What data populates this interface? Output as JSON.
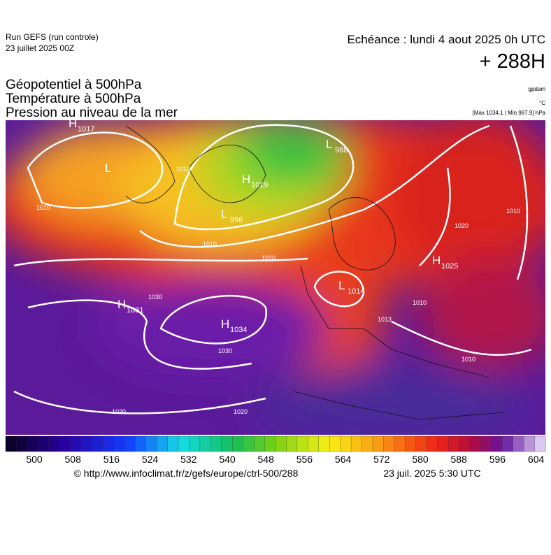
{
  "header": {
    "run": "Run GEFS (run controle)",
    "run_date": "23 juillet 2025 00Z",
    "valid": "Echéance : lundi 4 aout 2025 0h UTC",
    "lead": "+ 288H",
    "fields": [
      "Géopotentiel à 500hPa",
      "Température à 500hPa",
      "Pression au niveau de la mer"
    ],
    "units": [
      "gpdam",
      "°C",
      "[Max 1034.1 | Min 987.9] hPa"
    ]
  },
  "map": {
    "centers": [
      {
        "letter": "H",
        "value": 1017
      },
      {
        "letter": "L",
        "value": null
      },
      {
        "letter": "H",
        "value": 1019
      },
      {
        "letter": "L",
        "value": 988
      },
      {
        "letter": "L",
        "value": 996
      },
      {
        "letter": "H",
        "value": 1025
      },
      {
        "letter": "H",
        "value": 1031
      },
      {
        "letter": "H",
        "value": 1034
      },
      {
        "letter": "L",
        "value": 1014
      }
    ],
    "isobar_labels": [
      1010,
      1010,
      1010,
      1020,
      1030,
      1030,
      1020,
      1020,
      1020,
      1010,
      1013,
      1010,
      1010
    ]
  },
  "colorbar": {
    "ticks": [
      500,
      508,
      516,
      524,
      532,
      540,
      548,
      556,
      564,
      572,
      580,
      588,
      596,
      604
    ]
  },
  "footer": {
    "source": "© http://www.infoclimat.fr/z/gefs/europe/ctrl-500/288",
    "issued": "23 juil. 2025  5:30 UTC"
  }
}
